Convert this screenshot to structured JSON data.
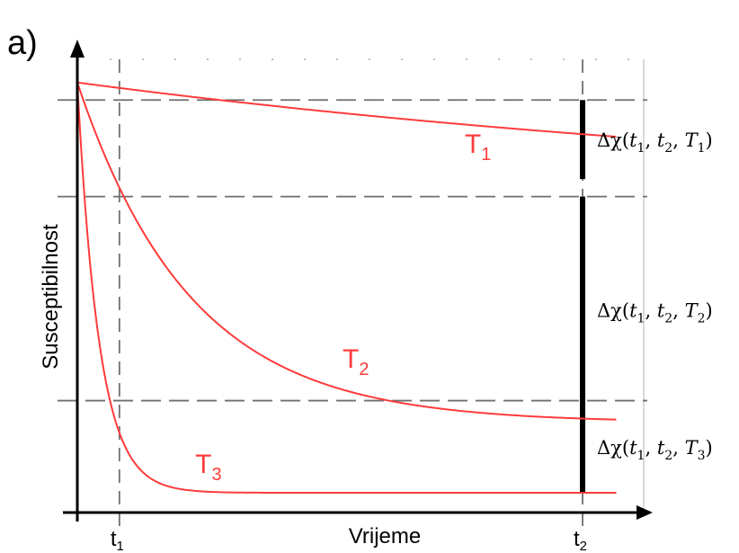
{
  "panel_label": "a)",
  "chart_data": {
    "type": "line",
    "title": "",
    "xlabel": "Vrijeme",
    "ylabel": "Susceptibilnost",
    "grid": false,
    "x_ticks": [
      {
        "label": "t",
        "sub": "1",
        "x": 1
      },
      {
        "label": "t",
        "sub": "2",
        "x": 12
      }
    ],
    "xlim": [
      0,
      13.3
    ],
    "ylim": [
      0,
      1
    ],
    "start_value": 0.98,
    "series": [
      {
        "name": "T",
        "sub": "1",
        "color": "#ff3b3b",
        "asymptote": 0.7,
        "tau": 22.0,
        "label_pos": [
          9.2,
          0.82
        ]
      },
      {
        "name": "T",
        "sub": "2",
        "color": "#ff3b3b",
        "asymptote": 0.205,
        "tau": 2.7,
        "label_pos": [
          6.3,
          0.33
        ]
      },
      {
        "name": "T",
        "sub": "3",
        "color": "#ff3b3b",
        "asymptote": 0.045,
        "tau": 0.52,
        "label_pos": [
          2.8,
          0.09
        ]
      }
    ],
    "reference_lines": [
      {
        "name": "level-t1-T1",
        "y": 0.94
      },
      {
        "name": "level-t1-T2",
        "y": 0.72
      },
      {
        "name": "level-t1-T3",
        "y": 0.255
      }
    ],
    "annotations": [
      {
        "pre": "Δχ(",
        "args": [
          [
            "t",
            "1"
          ],
          [
            "t",
            "2"
          ],
          [
            "T",
            "1"
          ]
        ],
        "post": ")",
        "y_from": 0.94,
        "y_to": 0.76
      },
      {
        "pre": "Δχ(",
        "args": [
          [
            "t",
            "1"
          ],
          [
            "t",
            "2"
          ],
          [
            "T",
            "2"
          ]
        ],
        "post": ")",
        "y_from": 0.72,
        "y_to": 0.205
      },
      {
        "pre": "Δχ(",
        "args": [
          [
            "t",
            "1"
          ],
          [
            "t",
            "2"
          ],
          [
            "T",
            "3"
          ]
        ],
        "post": ")",
        "y_from": 0.255,
        "y_to": 0.045
      }
    ]
  }
}
